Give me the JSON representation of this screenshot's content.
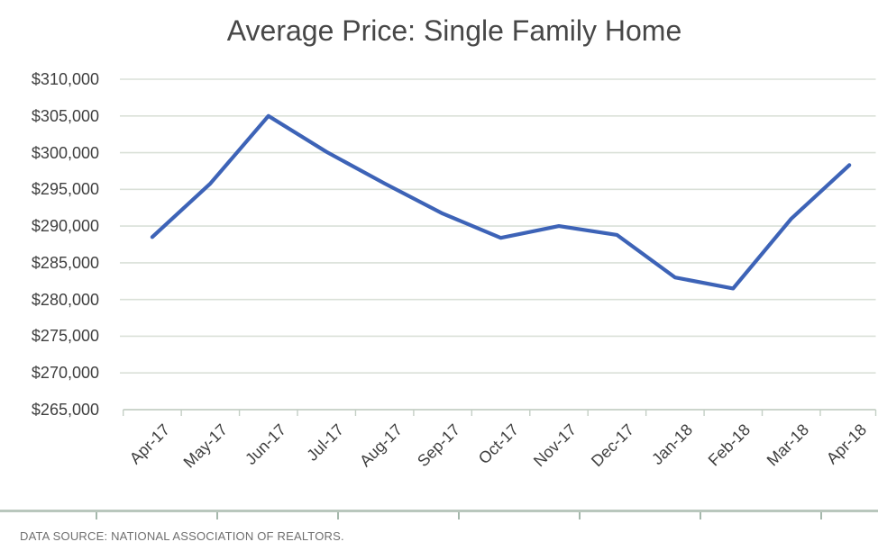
{
  "page": {
    "title": "Average Price: Single Family Home",
    "source_note": "DATA SOURCE: NATIONAL ASSOCIATION OF REALTORS."
  },
  "chart_data": {
    "type": "line",
    "title": "Average Price: Single Family Home",
    "categories": [
      "Apr-17",
      "May-17",
      "Jun-17",
      "Jul-17",
      "Aug-17",
      "Sep-17",
      "Oct-17",
      "Nov-17",
      "Dec-17",
      "Jan-18",
      "Feb-18",
      "Mar-18",
      "Apr-18"
    ],
    "series": [
      {
        "name": "Average Price",
        "values": [
          288500,
          295800,
          305000,
          300100,
          295800,
          291700,
          288400,
          290000,
          288800,
          283000,
          281500,
          291000,
          298300
        ]
      }
    ],
    "xlabel": "",
    "ylabel": "",
    "ylim": [
      265000,
      310000
    ],
    "y_ticks": [
      265000,
      270000,
      275000,
      280000,
      285000,
      290000,
      295000,
      300000,
      305000,
      310000
    ],
    "y_tick_labels": [
      "$265,000",
      "$270,000",
      "$275,000",
      "$280,000",
      "$285,000",
      "$290,000",
      "$295,000",
      "$300,000",
      "$305,000",
      "$310,000"
    ],
    "grid": true,
    "legend": false,
    "line_color": "#3d63b7",
    "grid_color": "#dae0d8",
    "axis_color": "#c4cfc5",
    "label_color": "#3f3f3f"
  },
  "decor": {
    "bottom_rule": {
      "tick_start": 106,
      "tick_step": 134,
      "tick_count": 7
    }
  }
}
